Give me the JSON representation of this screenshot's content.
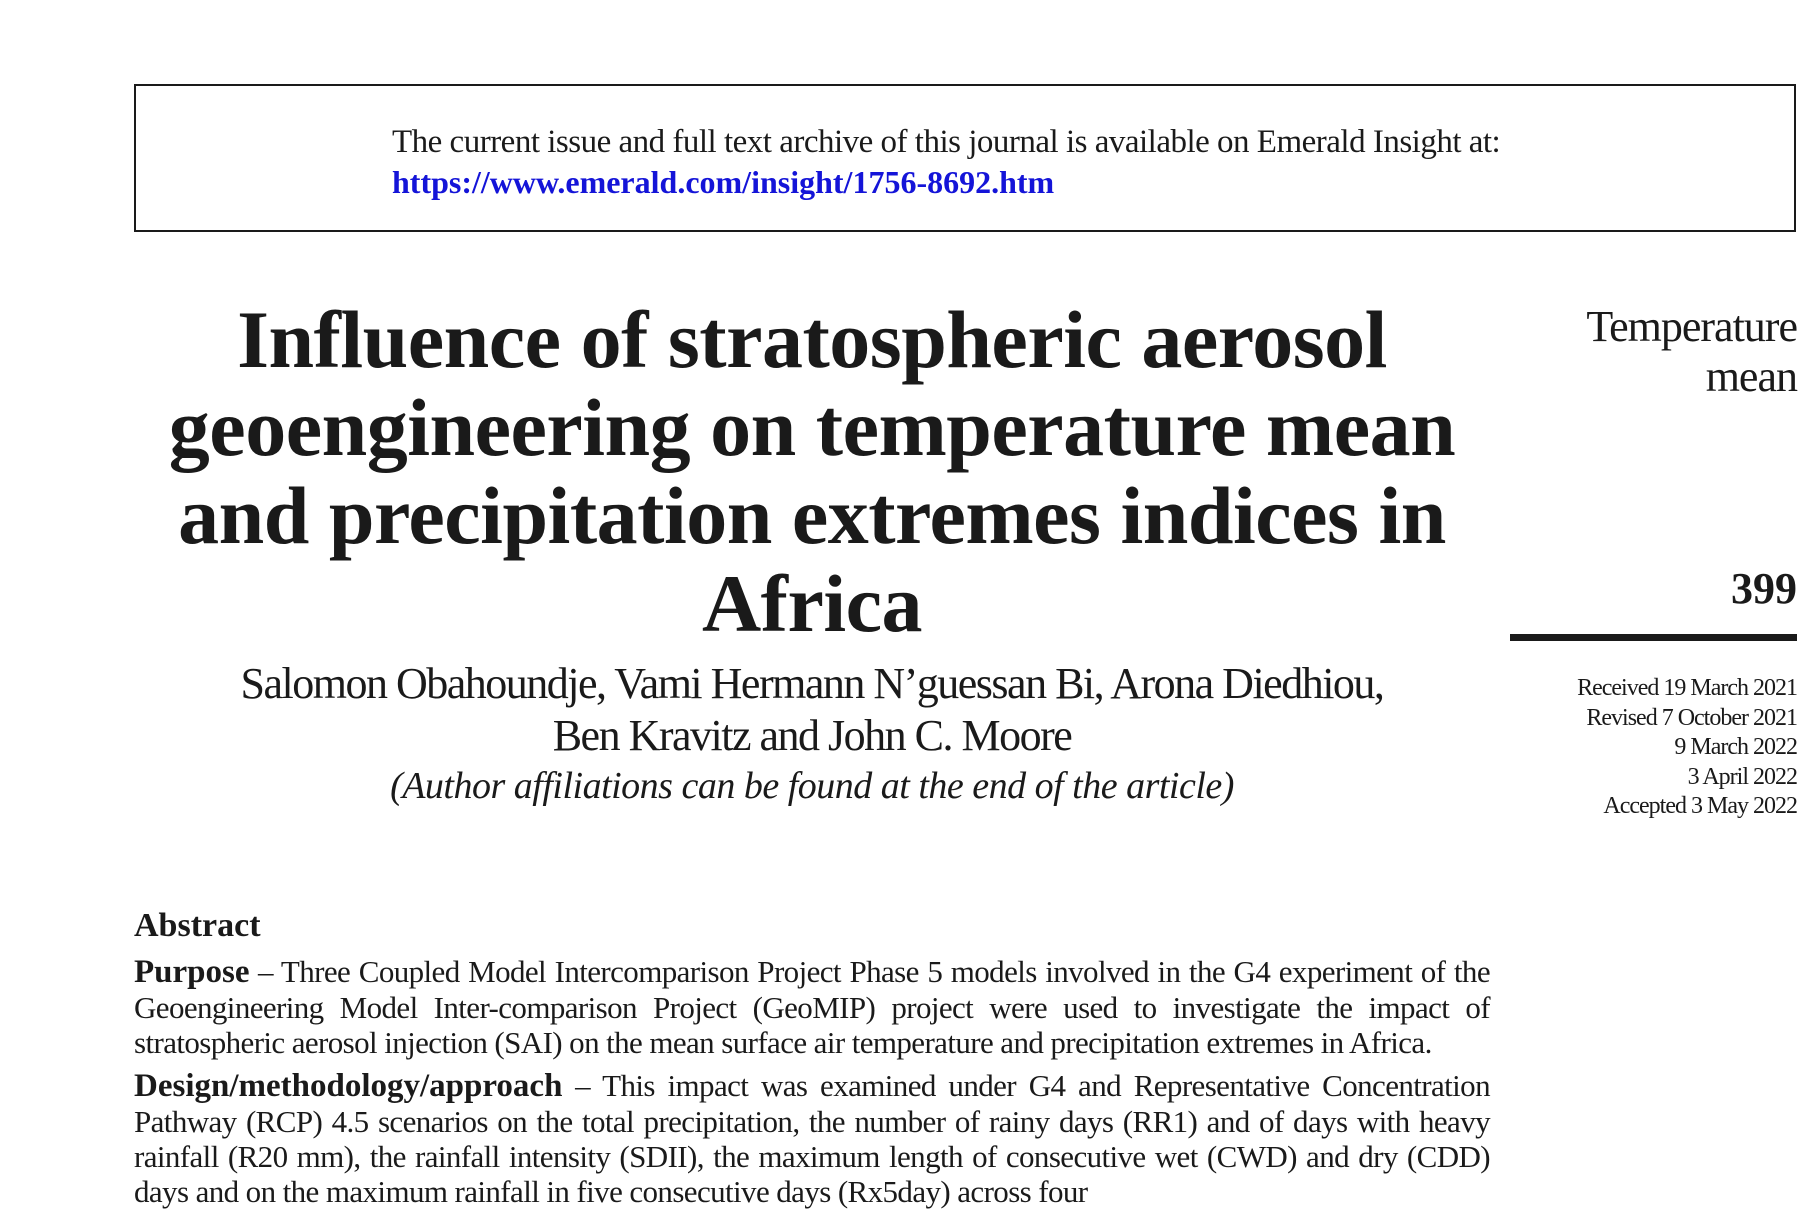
{
  "notice": {
    "text": "The current issue and full text archive of this journal is available on Emerald Insight at:",
    "link": "https://www.emerald.com/insight/1756-8692.htm"
  },
  "article": {
    "title": "Influence of stratospheric aerosol geoengineering on temperature mean and precipitation extremes indices in Africa",
    "authors_line1": "Salomon Obahoundje, Vami Hermann N’guessan Bi, Arona Diedhiou,",
    "authors_line2": "Ben Kravitz and John C. Moore",
    "affiliations_note": "(Author affiliations can be found at the end of the article)"
  },
  "sidebar": {
    "running_head_line1": "Temperature",
    "running_head_line2": "mean",
    "page_number": "399",
    "history": [
      "Received 19 March 2021",
      "Revised 7 October 2021",
      "9 March 2022",
      "3 April 2022",
      "Accepted 3 May 2022"
    ]
  },
  "abstract": {
    "heading": "Abstract",
    "purpose_label": "Purpose",
    "purpose_text": " – Three Coupled Model Intercomparison Project Phase 5 models involved in the G4 experiment of the Geoengineering Model Inter-comparison Project (GeoMIP) project were used to investigate the impact of stratospheric aerosol injection (SAI) on the mean surface air temperature and precipitation extremes in Africa.",
    "design_label": "Design/methodology/approach",
    "design_text": " – This impact was examined under G4 and Representative Concentration Pathway (RCP) 4.5 scenarios on the total precipitation, the number of rainy days (RR1) and of days with heavy rainfall (R20 mm), the rainfall intensity (SDII), the maximum length of consecutive wet (CWD) and dry (CDD) days and on the maximum rainfall in five consecutive days (Rx5day) across four"
  }
}
